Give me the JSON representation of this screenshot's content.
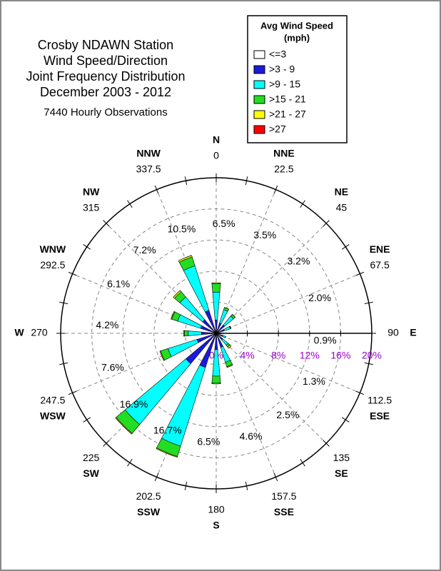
{
  "chart_data": {
    "type": "windrose",
    "title": [
      "Crosby NDAWN Station",
      "Wind Speed/Direction",
      "Joint Frequency Distribution",
      "December 2003 - 2012"
    ],
    "subtitle": "7440 Hourly Observations",
    "legend_title": [
      "Avg Wind Speed",
      "(mph)"
    ],
    "categories": [
      "N",
      "NNE",
      "NE",
      "ENE",
      "E",
      "ESE",
      "SE",
      "SSE",
      "S",
      "SSW",
      "SW",
      "WSW",
      "W",
      "WNW",
      "NW",
      "NNW"
    ],
    "angles": [
      0,
      22.5,
      45,
      67.5,
      90,
      112.5,
      135,
      157.5,
      180,
      202.5,
      225,
      247.5,
      270,
      292.5,
      315,
      337.5
    ],
    "direction_labels": [
      "6.5%",
      "3.5%",
      "3.2%",
      "2.0%",
      "0.9%",
      "1.3%",
      "2.5%",
      "4.6%",
      "6.5%",
      "16.7%",
      "16.9%",
      "7.6%",
      "4.2%",
      "6.1%",
      "7.2%",
      "10.5%"
    ],
    "series": [
      {
        "name": "<=3",
        "color": "#ffffff",
        "values": [
          0.1,
          0.1,
          0.1,
          0.1,
          0.1,
          0.1,
          0.1,
          0.1,
          0.1,
          0.1,
          0.1,
          0.1,
          0.1,
          0.1,
          0.1,
          0.1
        ]
      },
      {
        "name": ">3 - 9",
        "color": "#1a1adc",
        "values": [
          1.6,
          1.3,
          1.3,
          1.0,
          0.6,
          0.8,
          1.0,
          1.8,
          2.0,
          4.5,
          5.0,
          2.5,
          1.8,
          2.0,
          2.2,
          3.0
        ]
      },
      {
        "name": ">9 - 15",
        "color": "#00ffff",
        "values": [
          3.6,
          1.8,
          1.5,
          0.8,
          0.2,
          0.4,
          0.9,
          2.0,
          3.4,
          10.6,
          10.2,
          3.9,
          1.7,
          3.1,
          3.8,
          6.0
        ]
      },
      {
        "name": ">15 - 21",
        "color": "#22dd22",
        "values": [
          1.1,
          0.3,
          0.3,
          0.1,
          0,
          0,
          0.3,
          0.6,
          0.9,
          1.4,
          1.5,
          1.0,
          0.5,
          0.8,
          0.9,
          1.2
        ]
      },
      {
        "name": ">21 - 27",
        "color": "#ffff00",
        "values": [
          0.1,
          0,
          0,
          0,
          0,
          0,
          0.2,
          0.1,
          0.1,
          0.1,
          0.1,
          0.1,
          0.1,
          0.1,
          0.2,
          0.2
        ]
      },
      {
        "name": ">27",
        "color": "#ff0000",
        "values": [
          0,
          0,
          0,
          0,
          0,
          0,
          0,
          0,
          0,
          0,
          0,
          0,
          0,
          0,
          0,
          0
        ]
      }
    ],
    "rlim": [
      0,
      20
    ],
    "rticks": [
      {
        "value": 0,
        "label": "0%"
      },
      {
        "value": 4,
        "label": "4%"
      },
      {
        "value": 8,
        "label": "8%"
      },
      {
        "value": 12,
        "label": "12%"
      },
      {
        "value": 16,
        "label": "16%"
      },
      {
        "value": 20,
        "label": "20%"
      }
    ],
    "grid": true
  }
}
